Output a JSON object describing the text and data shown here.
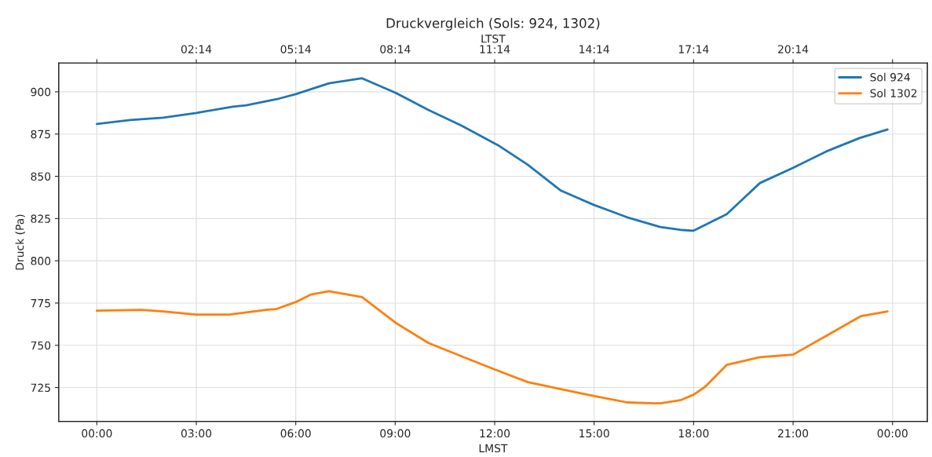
{
  "chart_data": {
    "type": "line",
    "title": "Druckvergleich (Sols: 924, 1302)",
    "xlabel": "LMST",
    "ylabel": "Druck (Pa)",
    "x2label": "LTST",
    "series": [
      {
        "name": "Sol 924",
        "color": "#1f77b4",
        "x": [
          0,
          1,
          2,
          3,
          4.1,
          4.5,
          5,
          5.5,
          6,
          7,
          8,
          9,
          10,
          11,
          11.66,
          12.1,
          13,
          14,
          15,
          16,
          17,
          17.6,
          18,
          19,
          20,
          21,
          22,
          23,
          23.85
        ],
        "values": [
          881,
          883.3,
          884.7,
          887.5,
          891.2,
          892,
          894,
          896,
          898.6,
          905,
          908,
          899.5,
          889.3,
          880,
          873,
          868.4,
          856.8,
          841.5,
          833,
          825.7,
          820,
          818.3,
          817.8,
          827.6,
          846,
          855,
          864.7,
          872.6,
          877.7
        ]
      },
      {
        "name": "Sol 1302",
        "color": "#ff7f0e",
        "x": [
          0,
          1.34,
          2,
          3,
          4,
          5.1,
          5.4,
          6,
          6.45,
          7,
          8,
          9,
          10,
          11,
          12,
          13,
          14,
          15,
          16,
          16.8,
          17,
          17.6,
          18,
          18.35,
          19,
          20,
          21,
          22,
          23.05,
          23.85
        ],
        "values": [
          770.5,
          771,
          770,
          768.2,
          768.2,
          771,
          771.4,
          775.6,
          780,
          782,
          778.5,
          763.5,
          751.4,
          743.5,
          735.7,
          728.2,
          724,
          720,
          716.2,
          715.7,
          715.7,
          717.5,
          720.8,
          725.5,
          738.4,
          743,
          744.5,
          755.6,
          767.3,
          770
        ]
      }
    ],
    "xlim": [
      -1.15,
      25.05
    ],
    "ylim": [
      705,
      917
    ],
    "xticks": [
      {
        "value": 0,
        "label": "00:00"
      },
      {
        "value": 3,
        "label": "03:00"
      },
      {
        "value": 6,
        "label": "06:00"
      },
      {
        "value": 9,
        "label": "09:00"
      },
      {
        "value": 12,
        "label": "12:00"
      },
      {
        "value": 15,
        "label": "15:00"
      },
      {
        "value": 18,
        "label": "18:00"
      },
      {
        "value": 21,
        "label": "21:00"
      },
      {
        "value": 24,
        "label": "00:00"
      }
    ],
    "yticks": [
      725,
      750,
      775,
      800,
      825,
      850,
      875,
      900
    ],
    "x2lim": [
      -1.9167,
      24.2833
    ],
    "x2ticks": [
      {
        "value": -0.7667,
        "label": null
      },
      {
        "value": 2.2333,
        "label": "02:14"
      },
      {
        "value": 5.2333,
        "label": "05:14"
      },
      {
        "value": 8.2333,
        "label": "08:14"
      },
      {
        "value": 11.2333,
        "label": "11:14"
      },
      {
        "value": 14.2333,
        "label": "14:14"
      },
      {
        "value": 17.2333,
        "label": "17:14"
      },
      {
        "value": 20.2333,
        "label": "20:14"
      },
      {
        "value": 23.2333,
        "label": null
      }
    ],
    "grid": true,
    "legend": "top right",
    "line_style": "solid",
    "marker": "none"
  }
}
